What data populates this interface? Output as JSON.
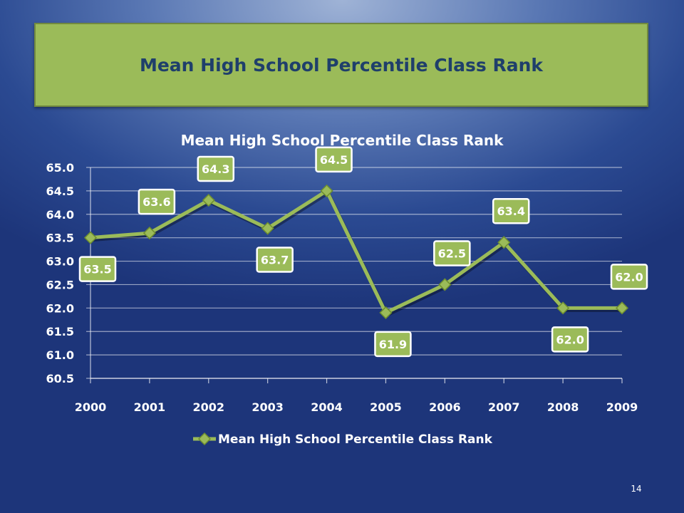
{
  "slide": {
    "title": "Mean High School Percentile Class Rank",
    "page_number": "14"
  },
  "colors": {
    "banner": "#9bbb59",
    "title_text": "#1f3f6b",
    "series": "#9bbb59"
  },
  "chart_data": {
    "type": "line",
    "title": "Mean High School Percentile Class Rank",
    "categories": [
      "2000",
      "2001",
      "2002",
      "2003",
      "2004",
      "2005",
      "2006",
      "2007",
      "2008",
      "2009"
    ],
    "series": [
      {
        "name": "Mean High School Percentile Class Rank",
        "values": [
          63.5,
          63.6,
          64.3,
          63.7,
          64.5,
          61.9,
          62.5,
          63.4,
          62.0,
          62.0
        ],
        "labels": [
          "63.5",
          "63.6",
          "64.3",
          "63.7",
          "64.5",
          "61.9",
          "62.5",
          "63.4",
          "62.0",
          "62.0"
        ]
      }
    ],
    "ylim": [
      60.5,
      65.0
    ],
    "ytick_labels": [
      "60.5",
      "61.0",
      "61.5",
      "62.0",
      "62.5",
      "63.0",
      "63.5",
      "64.0",
      "64.5",
      "65.0"
    ],
    "grid": true,
    "legend": "bottom",
    "xlabel": "",
    "ylabel": ""
  }
}
